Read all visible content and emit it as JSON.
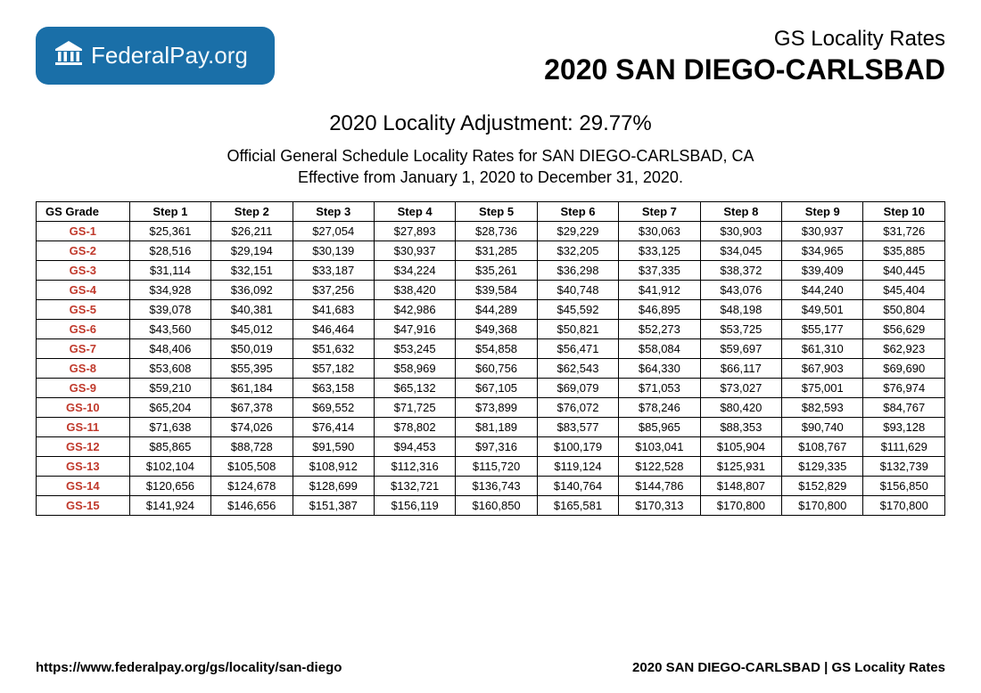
{
  "logo": {
    "brand_bold": "Federal",
    "brand_light": "Pay.org"
  },
  "header": {
    "subtitle": "GS Locality Rates",
    "title": "2020 SAN DIEGO-CARLSBAD"
  },
  "subhead": {
    "adjustment": "2020 Locality Adjustment: 29.77%",
    "line1": "Official General Schedule Locality Rates for SAN DIEGO-CARLSBAD, CA",
    "line2": "Effective from January 1, 2020 to December 31, 2020."
  },
  "table": {
    "columns": [
      "GS Grade",
      "Step 1",
      "Step 2",
      "Step 3",
      "Step 4",
      "Step 5",
      "Step 6",
      "Step 7",
      "Step 8",
      "Step 9",
      "Step 10"
    ],
    "rows": [
      [
        "GS-1",
        "$25,361",
        "$26,211",
        "$27,054",
        "$27,893",
        "$28,736",
        "$29,229",
        "$30,063",
        "$30,903",
        "$30,937",
        "$31,726"
      ],
      [
        "GS-2",
        "$28,516",
        "$29,194",
        "$30,139",
        "$30,937",
        "$31,285",
        "$32,205",
        "$33,125",
        "$34,045",
        "$34,965",
        "$35,885"
      ],
      [
        "GS-3",
        "$31,114",
        "$32,151",
        "$33,187",
        "$34,224",
        "$35,261",
        "$36,298",
        "$37,335",
        "$38,372",
        "$39,409",
        "$40,445"
      ],
      [
        "GS-4",
        "$34,928",
        "$36,092",
        "$37,256",
        "$38,420",
        "$39,584",
        "$40,748",
        "$41,912",
        "$43,076",
        "$44,240",
        "$45,404"
      ],
      [
        "GS-5",
        "$39,078",
        "$40,381",
        "$41,683",
        "$42,986",
        "$44,289",
        "$45,592",
        "$46,895",
        "$48,198",
        "$49,501",
        "$50,804"
      ],
      [
        "GS-6",
        "$43,560",
        "$45,012",
        "$46,464",
        "$47,916",
        "$49,368",
        "$50,821",
        "$52,273",
        "$53,725",
        "$55,177",
        "$56,629"
      ],
      [
        "GS-7",
        "$48,406",
        "$50,019",
        "$51,632",
        "$53,245",
        "$54,858",
        "$56,471",
        "$58,084",
        "$59,697",
        "$61,310",
        "$62,923"
      ],
      [
        "GS-8",
        "$53,608",
        "$55,395",
        "$57,182",
        "$58,969",
        "$60,756",
        "$62,543",
        "$64,330",
        "$66,117",
        "$67,903",
        "$69,690"
      ],
      [
        "GS-9",
        "$59,210",
        "$61,184",
        "$63,158",
        "$65,132",
        "$67,105",
        "$69,079",
        "$71,053",
        "$73,027",
        "$75,001",
        "$76,974"
      ],
      [
        "GS-10",
        "$65,204",
        "$67,378",
        "$69,552",
        "$71,725",
        "$73,899",
        "$76,072",
        "$78,246",
        "$80,420",
        "$82,593",
        "$84,767"
      ],
      [
        "GS-11",
        "$71,638",
        "$74,026",
        "$76,414",
        "$78,802",
        "$81,189",
        "$83,577",
        "$85,965",
        "$88,353",
        "$90,740",
        "$93,128"
      ],
      [
        "GS-12",
        "$85,865",
        "$88,728",
        "$91,590",
        "$94,453",
        "$97,316",
        "$100,179",
        "$103,041",
        "$105,904",
        "$108,767",
        "$111,629"
      ],
      [
        "GS-13",
        "$102,104",
        "$105,508",
        "$108,912",
        "$112,316",
        "$115,720",
        "$119,124",
        "$122,528",
        "$125,931",
        "$129,335",
        "$132,739"
      ],
      [
        "GS-14",
        "$120,656",
        "$124,678",
        "$128,699",
        "$132,721",
        "$136,743",
        "$140,764",
        "$144,786",
        "$148,807",
        "$152,829",
        "$156,850"
      ],
      [
        "GS-15",
        "$141,924",
        "$146,656",
        "$151,387",
        "$156,119",
        "$160,850",
        "$165,581",
        "$170,313",
        "$170,800",
        "$170,800",
        "$170,800"
      ]
    ]
  },
  "footer": {
    "url": "https://www.federalpay.org/gs/locality/san-diego",
    "right": "2020 SAN DIEGO-CARLSBAD | GS Locality Rates"
  },
  "colors": {
    "logo_bg": "#1a6fa8",
    "grade_color": "#c0392b"
  }
}
